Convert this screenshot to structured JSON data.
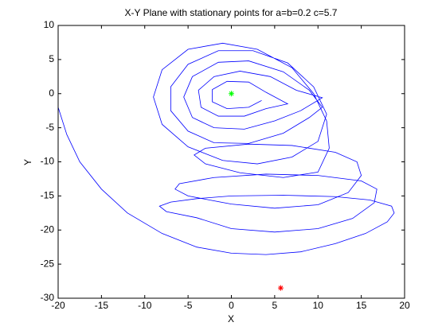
{
  "chart_data": {
    "type": "line",
    "title": "X-Y Plane with stationary points for a=b=0.2 c=5.7",
    "xlabel": "X",
    "ylabel": "Y",
    "xlim": [
      -20,
      20
    ],
    "ylim": [
      -30,
      10
    ],
    "xticks": [
      -20,
      -15,
      -10,
      -5,
      0,
      5,
      10,
      15,
      20
    ],
    "yticks": [
      -30,
      -25,
      -20,
      -15,
      -10,
      -5,
      0,
      5,
      10
    ],
    "series": [
      {
        "color": "#0000ff",
        "x": [
          -20,
          -19,
          -17.5,
          -15,
          -12,
          -8,
          -4,
          0,
          4,
          8,
          12,
          15.5,
          18,
          18.8,
          18.5,
          16,
          12,
          6,
          0,
          -4,
          -7,
          -8.3,
          -7.5,
          -4,
          0,
          5,
          10,
          14,
          16.5,
          16.8,
          15,
          10,
          4,
          -2,
          -6,
          -6.5,
          -5,
          0,
          5,
          10,
          13.5,
          15,
          14.5,
          12,
          7,
          2,
          -3,
          -4.3,
          -3,
          1,
          6,
          10,
          11.3,
          11,
          9.5,
          7,
          3,
          -1,
          -5,
          -8,
          -9,
          -8,
          -5,
          -1,
          3,
          7,
          10,
          11,
          9.5,
          6.5,
          2.5,
          -1.5,
          -5,
          -7,
          -7,
          -5,
          -2,
          2,
          6,
          9,
          10.5,
          9,
          6,
          2,
          -1.5,
          -4.5,
          -5.5,
          -4.5,
          -2,
          1.5,
          5,
          8,
          10.5,
          7.5,
          4.5,
          1,
          -2,
          -3.8,
          -3.5,
          -1.5,
          1.5,
          4,
          6.5,
          4,
          2,
          -0.5,
          -2.2,
          -2.2,
          -0.5,
          2,
          3.5
        ],
        "values": [
          -2,
          -6,
          -10,
          -14,
          -17.5,
          -20.5,
          -22.5,
          -23.4,
          -23.6,
          -23.2,
          -22,
          -20.5,
          -18.8,
          -17.5,
          -16.5,
          -15.6,
          -15.1,
          -14.9,
          -15,
          -15.4,
          -15.9,
          -16.5,
          -17.3,
          -18.2,
          -19.8,
          -20.3,
          -19.8,
          -18.3,
          -16,
          -14,
          -12.8,
          -12,
          -11.8,
          -12.3,
          -13.2,
          -14,
          -15,
          -16.2,
          -16.8,
          -16.3,
          -14.5,
          -12,
          -10,
          -8.6,
          -7.6,
          -7.4,
          -8,
          -9,
          -10.3,
          -11.6,
          -12.3,
          -11.5,
          -8,
          -4,
          0,
          3.8,
          6.5,
          7.4,
          6.5,
          3.5,
          -0.5,
          -4.5,
          -7.8,
          -9.8,
          -10.3,
          -9.3,
          -7,
          -3,
          1,
          4.5,
          6.3,
          6.3,
          4.3,
          1,
          -2.5,
          -5.5,
          -7.2,
          -7.3,
          -5.8,
          -3.5,
          -2,
          0.5,
          3.2,
          4.8,
          4.6,
          2.5,
          -0.5,
          -3.5,
          -5,
          -5.2,
          -4,
          -2.5,
          -0.6,
          0.5,
          2.5,
          3.3,
          2.5,
          0.5,
          -2,
          -3.3,
          -3.3,
          -2.2,
          -1.5,
          0.2,
          1.7,
          1.8,
          0.6,
          -1.2,
          -2.2,
          -2,
          -1
        ]
      }
    ],
    "markers": {
      "x": [
        0,
        5.7
      ],
      "y": [
        0,
        -28.5
      ],
      "colors": [
        "#00ff00",
        "#ff0000"
      ]
    }
  }
}
